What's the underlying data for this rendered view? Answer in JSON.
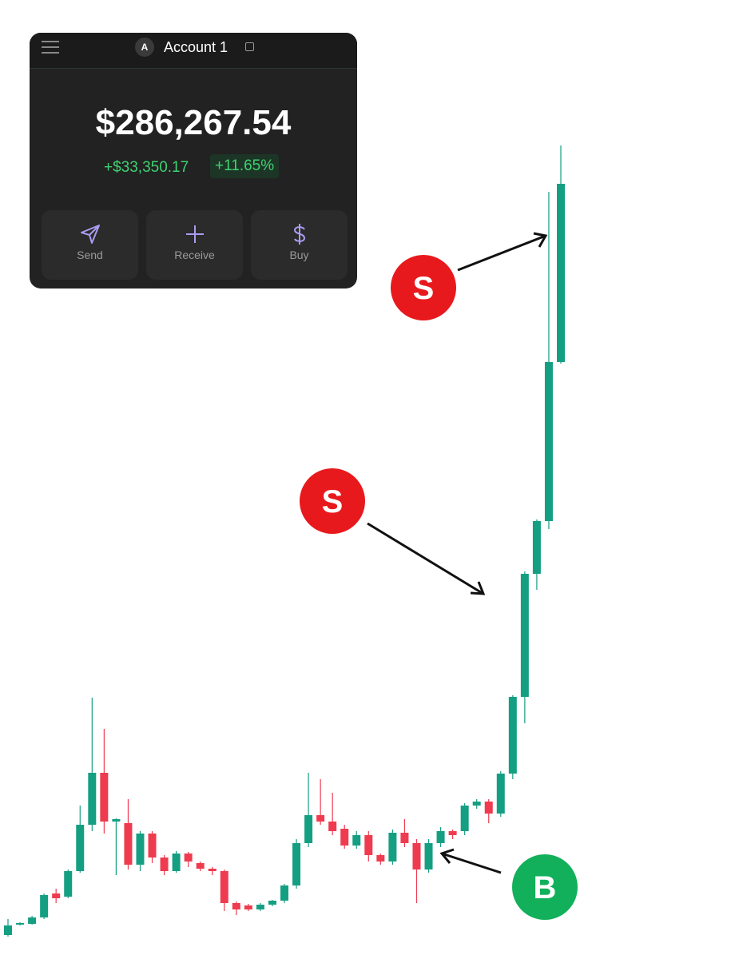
{
  "wallet": {
    "account": "Account 1",
    "avatar": "A",
    "balance": "$286,267.54",
    "change": "+$33,350.17",
    "change_percent": "+11.65%",
    "actions": [
      "Send",
      "Receive",
      "Buy"
    ]
  },
  "chart_data": {
    "type": "candlestick",
    "up_color": "#159f82",
    "down_color": "#ef3b4f",
    "ylim": [
      0,
      1200
    ],
    "open": [
      30,
      43,
      44,
      52,
      82,
      78,
      110,
      168,
      233,
      172,
      170,
      118,
      157,
      127,
      110,
      132,
      120,
      113,
      110,
      70,
      67,
      62,
      68,
      73,
      92,
      145,
      180,
      172,
      163,
      142,
      155,
      130,
      122,
      158,
      145,
      112,
      145,
      160,
      160,
      192,
      197,
      182,
      232,
      328,
      482,
      548,
      747
    ],
    "close": [
      42,
      45,
      52,
      80,
      76,
      110,
      168,
      233,
      172,
      175,
      118,
      157,
      127,
      110,
      132,
      122,
      113,
      110,
      70,
      62,
      62,
      68,
      73,
      92,
      145,
      180,
      172,
      160,
      142,
      155,
      130,
      122,
      158,
      145,
      112,
      145,
      160,
      155,
      192,
      197,
      182,
      232,
      328,
      482,
      548,
      747,
      970
    ],
    "high": [
      50,
      46,
      54,
      82,
      88,
      112,
      192,
      327,
      288,
      176,
      200,
      160,
      160,
      130,
      135,
      134,
      122,
      115,
      112,
      72,
      69,
      70,
      74,
      94,
      150,
      233,
      225,
      208,
      168,
      160,
      160,
      132,
      162,
      175,
      150,
      150,
      165,
      162,
      195,
      200,
      200,
      235,
      330,
      485,
      550,
      960,
      1018
    ],
    "low": [
      28,
      42,
      43,
      50,
      70,
      76,
      108,
      160,
      157,
      105,
      112,
      110,
      120,
      105,
      108,
      115,
      110,
      105,
      60,
      55,
      60,
      60,
      66,
      70,
      88,
      140,
      168,
      155,
      138,
      138,
      122,
      118,
      118,
      140,
      70,
      108,
      140,
      150,
      155,
      188,
      170,
      178,
      225,
      295,
      462,
      538,
      745
    ],
    "annotations": [
      {
        "text": "S",
        "color": "#e8191d"
      },
      {
        "text": "S",
        "color": "#e8191d"
      },
      {
        "text": "B",
        "color": "#12b05a"
      }
    ]
  }
}
